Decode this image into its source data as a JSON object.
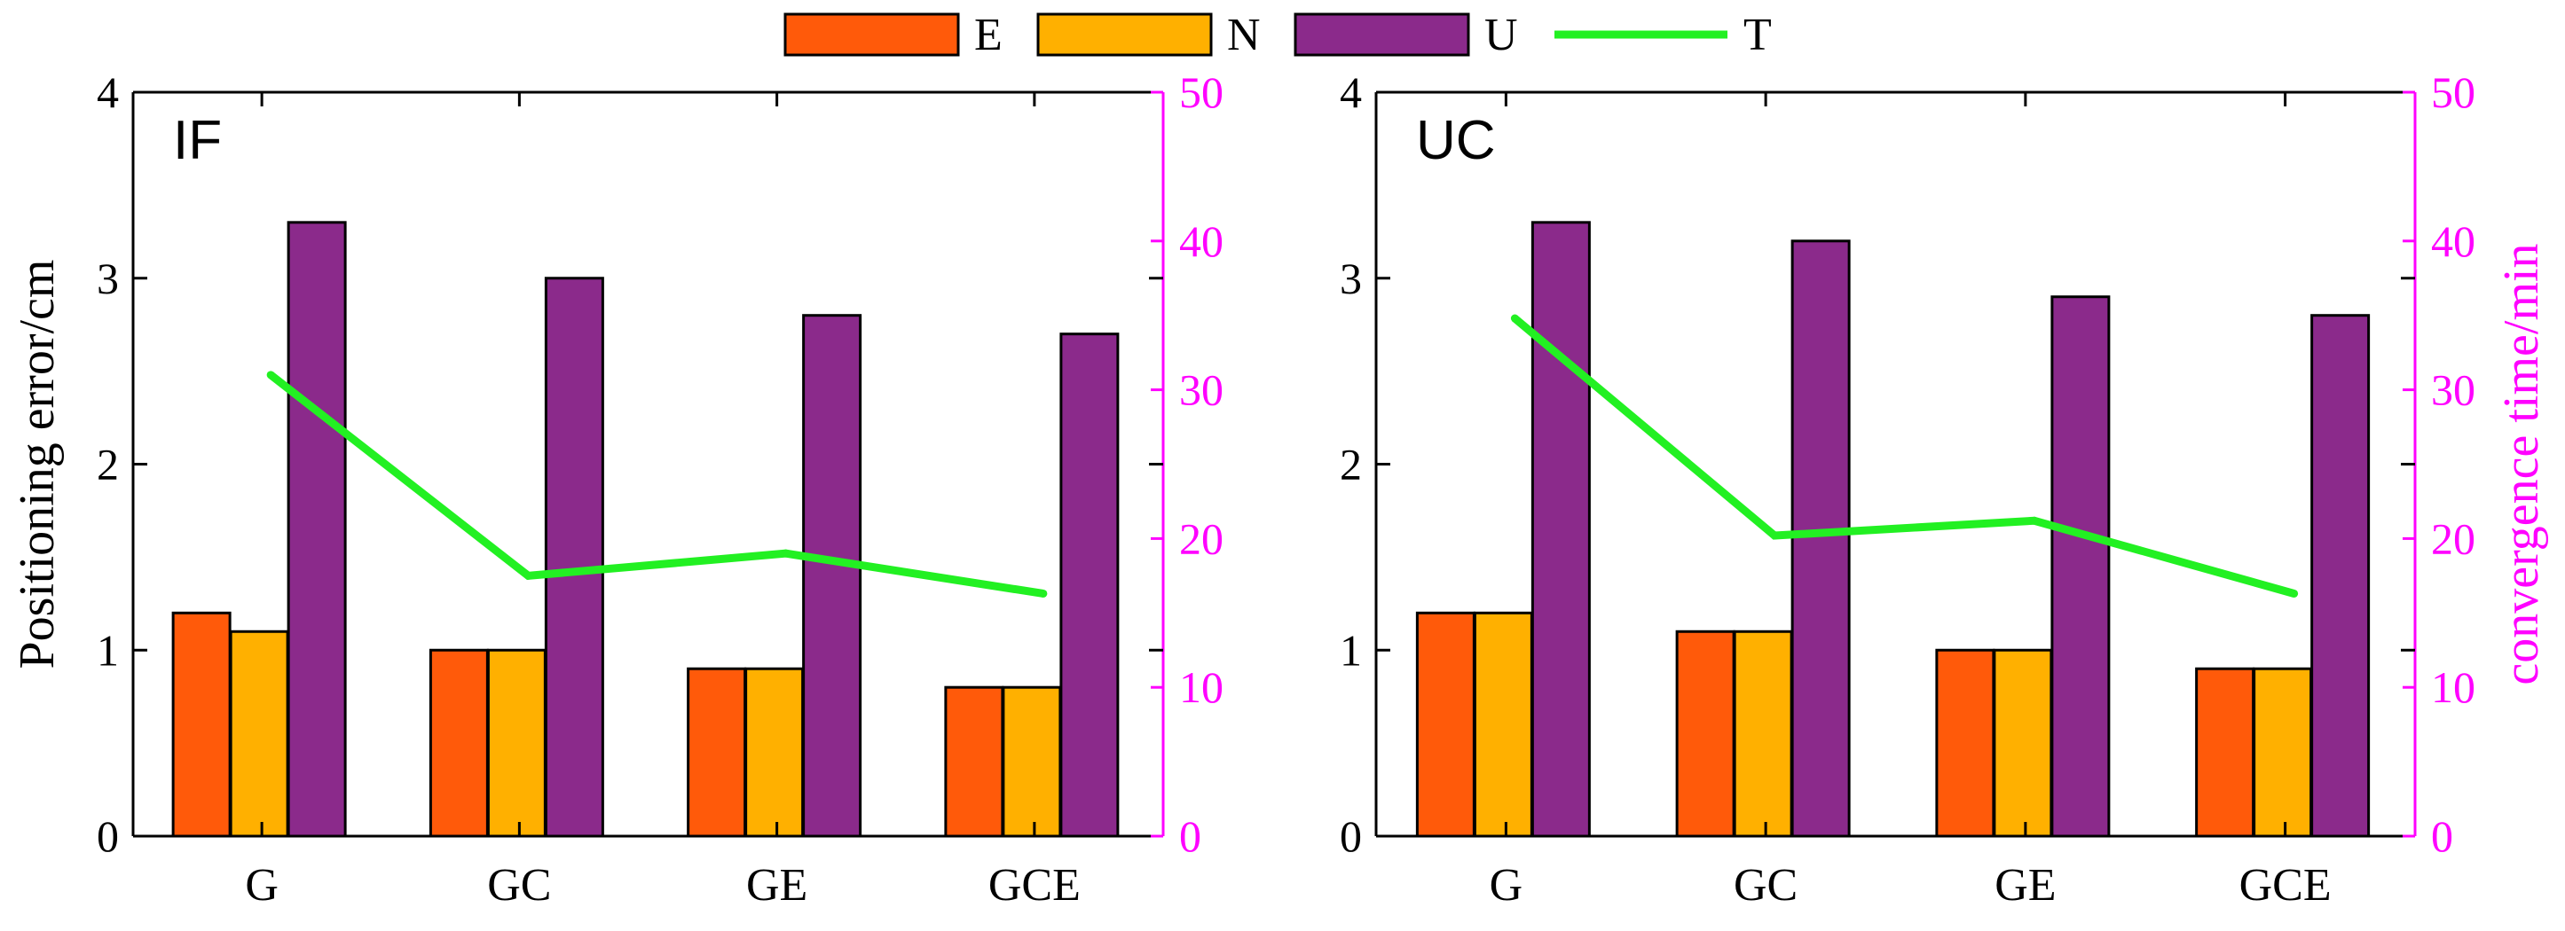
{
  "colors": {
    "E": "#FF5A0A",
    "N": "#FFB000",
    "U": "#8B2A8B",
    "T": "#22F022",
    "right_axis": "#FF00FF",
    "left_axis": "#000000"
  },
  "legend": {
    "items": [
      {
        "key": "E",
        "label": "E",
        "kind": "bar"
      },
      {
        "key": "N",
        "label": "N",
        "kind": "bar"
      },
      {
        "key": "U",
        "label": "U",
        "kind": "bar"
      },
      {
        "key": "T",
        "label": "T",
        "kind": "line"
      }
    ]
  },
  "chart_data": [
    {
      "type": "bar",
      "panel_label": "IF",
      "categories": [
        "G",
        "GC",
        "GE",
        "GCE"
      ],
      "series": [
        {
          "name": "E",
          "values": [
            1.2,
            1.0,
            0.9,
            0.8
          ]
        },
        {
          "name": "N",
          "values": [
            1.1,
            1.0,
            0.9,
            0.8
          ]
        },
        {
          "name": "U",
          "values": [
            3.3,
            3.0,
            2.8,
            2.7
          ]
        }
      ],
      "line_series": {
        "name": "T",
        "values": [
          31,
          17.5,
          19,
          16.3
        ],
        "axis": "right"
      },
      "ylabel": "Positioning error/cm",
      "ylim": [
        0,
        4
      ],
      "yticks": [
        "0",
        "1",
        "2",
        "3",
        "4"
      ],
      "y2label": "",
      "y2lim": [
        0,
        50
      ],
      "y2ticks": [
        "0",
        "10",
        "20",
        "30",
        "40",
        "50"
      ],
      "grid": false
    },
    {
      "type": "bar",
      "panel_label": "UC",
      "categories": [
        "G",
        "GC",
        "GE",
        "GCE"
      ],
      "series": [
        {
          "name": "E",
          "values": [
            1.2,
            1.1,
            1.0,
            0.9
          ]
        },
        {
          "name": "N",
          "values": [
            1.2,
            1.1,
            1.0,
            0.9
          ]
        },
        {
          "name": "U",
          "values": [
            3.3,
            3.2,
            2.9,
            2.8
          ]
        }
      ],
      "line_series": {
        "name": "T",
        "values": [
          34.8,
          20.2,
          21.2,
          16.3
        ],
        "axis": "right"
      },
      "ylabel": "",
      "ylim": [
        0,
        4
      ],
      "yticks": [
        "0",
        "1",
        "2",
        "3",
        "4"
      ],
      "y2label": "convergence time/min",
      "y2lim": [
        0,
        50
      ],
      "y2ticks": [
        "0",
        "10",
        "20",
        "30",
        "40",
        "50"
      ],
      "grid": false
    }
  ]
}
